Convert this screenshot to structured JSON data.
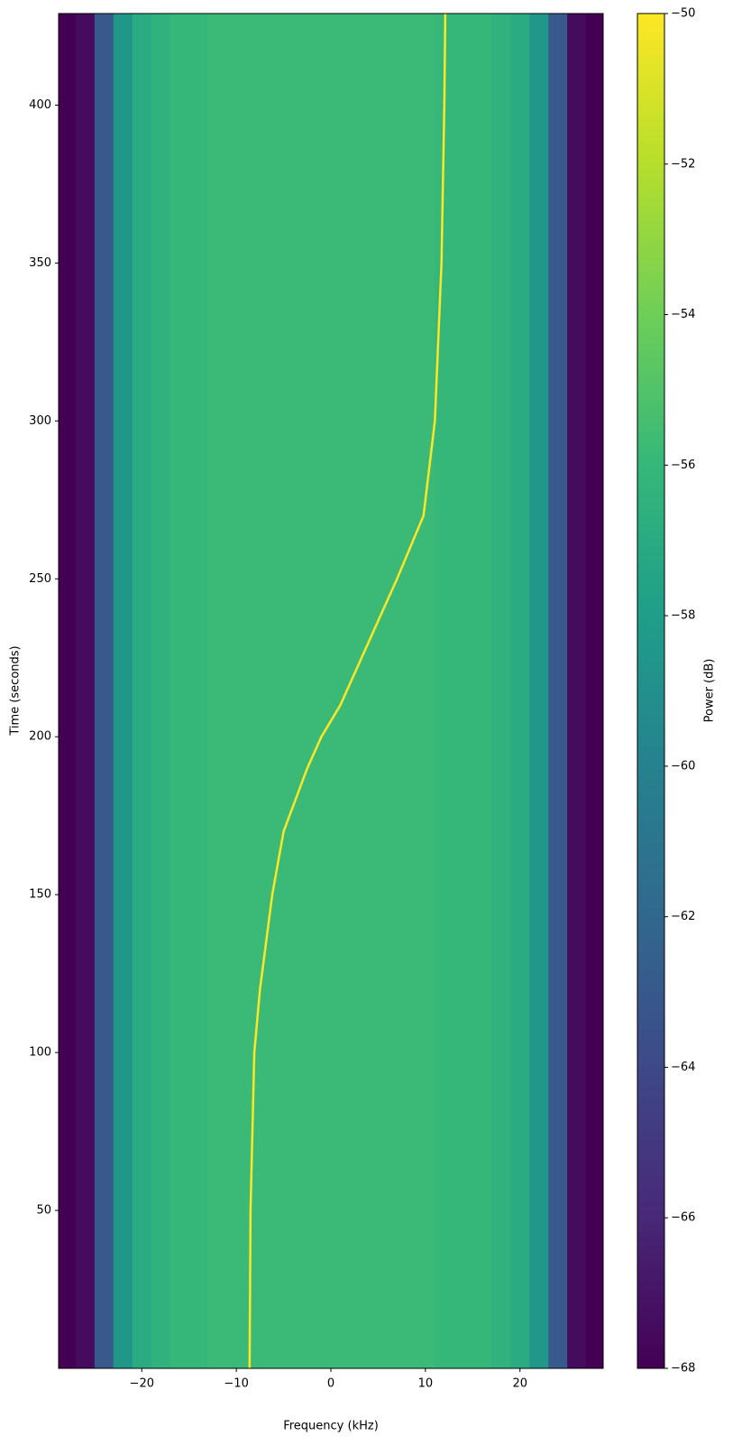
{
  "chart_data": {
    "type": "spectrogram",
    "x_label": "Frequency (kHz)",
    "y_label": "Time (seconds)",
    "colorbar_label": "Power (dB)",
    "xlim": [
      -28.8,
      28.8
    ],
    "ylim": [
      0,
      429
    ],
    "xticks": [
      {
        "value": -20,
        "label": "−20"
      },
      {
        "value": -10,
        "label": "−10"
      },
      0,
      10,
      20
    ],
    "yticks": [
      50,
      100,
      150,
      200,
      250,
      300,
      350,
      400
    ],
    "clim": [
      -68,
      -50
    ],
    "cticks": [
      {
        "value": -50,
        "label": "−50"
      },
      {
        "value": -52,
        "label": "−52"
      },
      {
        "value": -54,
        "label": "−54"
      },
      {
        "value": -56,
        "label": "−56"
      },
      {
        "value": -58,
        "label": "−58"
      },
      {
        "value": -60,
        "label": "−60"
      },
      {
        "value": -62,
        "label": "−62"
      },
      {
        "value": -64,
        "label": "−64"
      },
      {
        "value": -66,
        "label": "−66"
      },
      {
        "value": -68,
        "label": "−68"
      }
    ],
    "colormap": "viridis",
    "power_profile": {
      "frequencies": [
        -28,
        -26,
        -24,
        -22,
        -20,
        -18,
        -16,
        -14,
        -12,
        -10,
        -8,
        -6,
        -4,
        -2,
        0,
        2,
        4,
        6,
        8,
        10,
        12,
        14,
        16,
        18,
        20,
        22,
        24,
        26,
        28
      ],
      "values": [
        -68,
        -67.5,
        -63,
        -58.5,
        -57,
        -56.5,
        -56,
        -56,
        -55.8,
        -55.8,
        -55.8,
        -55.8,
        -55.8,
        -55.8,
        -55.8,
        -55.8,
        -55.8,
        -55.8,
        -55.8,
        -55.8,
        -56,
        -56,
        -56,
        -56.5,
        -57,
        -58.5,
        -63,
        -67.5,
        -68
      ]
    },
    "trace": {
      "color": "#fde725",
      "frequency": [
        -8.6,
        -8.5,
        -8.1,
        -7.5,
        -6.2,
        -5,
        -2.5,
        -1,
        1,
        4,
        7,
        9.8,
        11,
        11.7,
        12,
        12.1
      ],
      "time": [
        0,
        50,
        100,
        120,
        150,
        170,
        190,
        200,
        210,
        230,
        250,
        270,
        300,
        350,
        400,
        429
      ]
    }
  }
}
